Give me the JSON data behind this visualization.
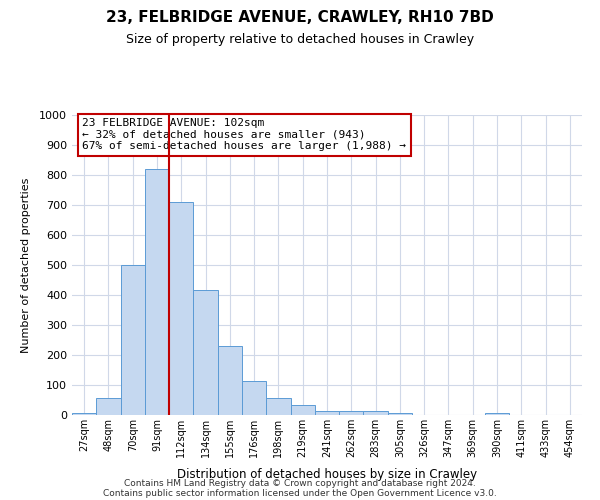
{
  "title": "23, FELBRIDGE AVENUE, CRAWLEY, RH10 7BD",
  "subtitle": "Size of property relative to detached houses in Crawley",
  "xlabel": "Distribution of detached houses by size in Crawley",
  "ylabel": "Number of detached properties",
  "bin_labels": [
    "27sqm",
    "48sqm",
    "70sqm",
    "91sqm",
    "112sqm",
    "134sqm",
    "155sqm",
    "176sqm",
    "198sqm",
    "219sqm",
    "241sqm",
    "262sqm",
    "283sqm",
    "305sqm",
    "326sqm",
    "347sqm",
    "369sqm",
    "390sqm",
    "411sqm",
    "433sqm",
    "454sqm"
  ],
  "bar_heights": [
    8,
    58,
    500,
    820,
    710,
    418,
    230,
    115,
    57,
    33,
    14,
    12,
    12,
    7,
    0,
    0,
    0,
    7,
    0,
    0,
    0
  ],
  "bar_color": "#c5d8f0",
  "bar_edge_color": "#5b9bd5",
  "bar_width": 1.0,
  "vline_x": 3.5,
  "vline_color": "#c00000",
  "ylim": [
    0,
    1000
  ],
  "yticks": [
    0,
    100,
    200,
    300,
    400,
    500,
    600,
    700,
    800,
    900,
    1000
  ],
  "annotation_text": "23 FELBRIDGE AVENUE: 102sqm\n← 32% of detached houses are smaller (943)\n67% of semi-detached houses are larger (1,988) →",
  "annotation_box_color": "#ffffff",
  "annotation_box_edge": "#c00000",
  "footer_line1": "Contains HM Land Registry data © Crown copyright and database right 2024.",
  "footer_line2": "Contains public sector information licensed under the Open Government Licence v3.0.",
  "background_color": "#ffffff",
  "grid_color": "#d0d8e8"
}
